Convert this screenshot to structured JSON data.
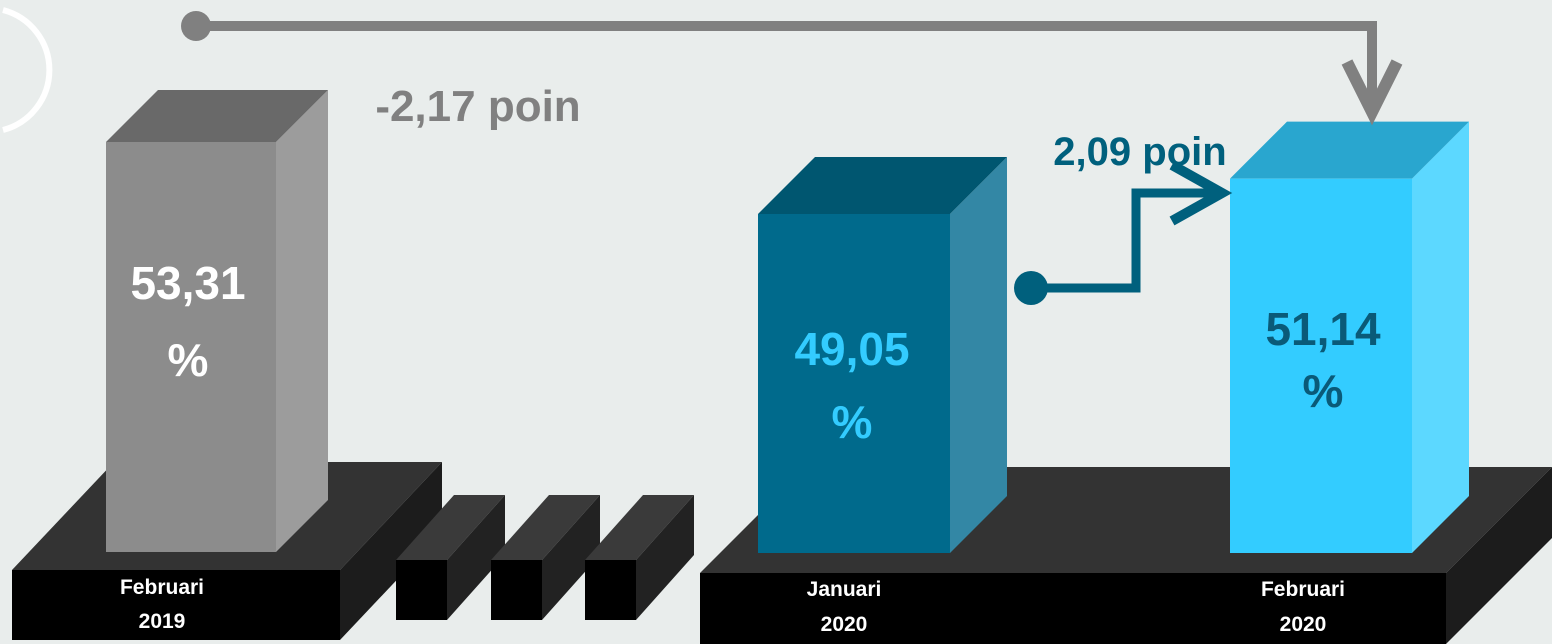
{
  "chart_data": {
    "type": "bar",
    "style": "3d",
    "categories": [
      "Februari 2019",
      "Januari 2020",
      "Februari 2020"
    ],
    "values": [
      53.31,
      49.05,
      51.14
    ],
    "unit": "%",
    "value_labels": [
      {
        "number": "53,31",
        "unit": "%"
      },
      {
        "number": "49,05",
        "unit": "%"
      },
      {
        "number": "51,14",
        "unit": "%"
      }
    ],
    "category_labels": [
      {
        "line1": "Februari",
        "line2": "2019"
      },
      {
        "line1": "Januari",
        "line2": "2020"
      },
      {
        "line1": "Februari",
        "line2": "2020"
      }
    ],
    "annotations": [
      {
        "text": "-2,17 poin",
        "from": "Februari 2019",
        "to": "Februari 2020",
        "delta": -2.17
      },
      {
        "text": "2,09 poin",
        "from": "Januari 2020",
        "to": "Februari 2020",
        "delta": 2.09
      }
    ],
    "colors": {
      "background": "#e9edec",
      "bar1": "#8c8c8c",
      "bar2": "#006a8c",
      "bar3": "#33ccff",
      "connector_gray": "#808080",
      "connector_blue": "#00607d",
      "platform": "#000000",
      "value_label_light": "#ffffff",
      "value_label_cyan": "#33ccff",
      "value_label_dark": "#0a5a78",
      "annotation_gray": "#808080",
      "annotation_blue": "#00607d"
    }
  }
}
